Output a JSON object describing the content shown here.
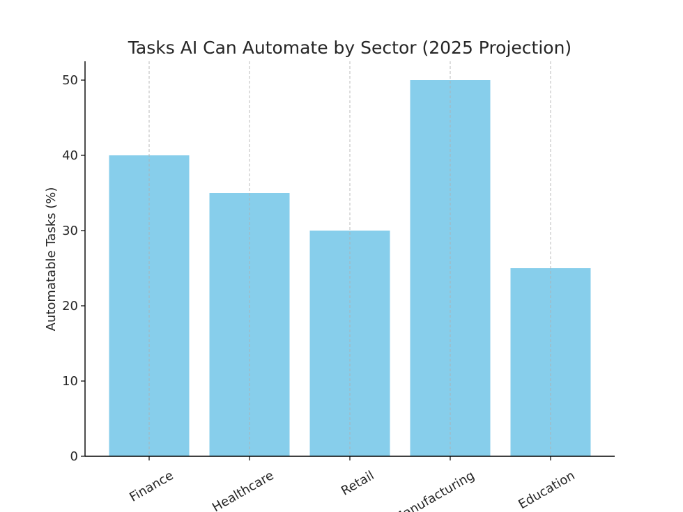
{
  "chart_data": {
    "type": "bar",
    "title": "Tasks AI Can Automate by Sector (2025 Projection)",
    "xlabel": "",
    "ylabel": "Automatable Tasks (%)",
    "categories": [
      "Finance",
      "Healthcare",
      "Retail",
      "Manufacturing",
      "Education"
    ],
    "values": [
      40,
      35,
      30,
      50,
      25
    ],
    "ylim": [
      0,
      52.5
    ],
    "yticks": [
      0,
      10,
      20,
      30,
      40,
      50
    ],
    "bar_color": "#87CEEB",
    "grid": "vertical dashed at categories",
    "xtick_rotation": 30
  }
}
